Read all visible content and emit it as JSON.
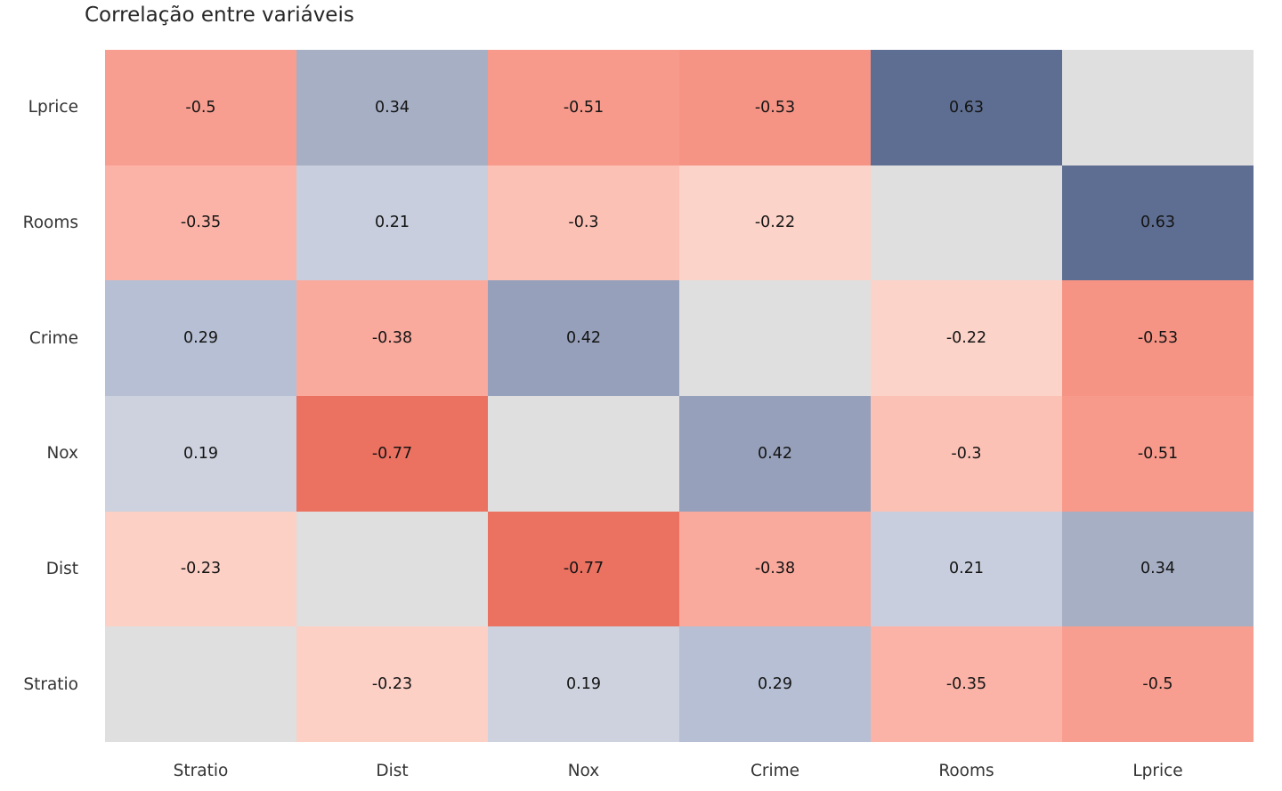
{
  "chart_data": {
    "type": "heatmap",
    "title": "Correlação entre variáveis",
    "rows": [
      "Lprice",
      "Rooms",
      "Crime",
      "Nox",
      "Dist",
      "Stratio"
    ],
    "cols": [
      "Stratio",
      "Dist",
      "Nox",
      "Crime",
      "Rooms",
      "Lprice"
    ],
    "values": [
      [
        -0.5,
        0.34,
        -0.51,
        -0.53,
        0.63,
        null
      ],
      [
        -0.35,
        0.21,
        -0.3,
        -0.22,
        null,
        0.63
      ],
      [
        0.29,
        -0.38,
        0.42,
        null,
        -0.22,
        -0.53
      ],
      [
        0.19,
        -0.77,
        null,
        0.42,
        -0.3,
        -0.51
      ],
      [
        -0.23,
        null,
        -0.77,
        -0.38,
        0.21,
        0.34
      ],
      [
        null,
        -0.23,
        0.19,
        0.29,
        -0.35,
        -0.5
      ]
    ],
    "value_colors": {
      "-0.77": "#eb7161",
      "-0.53": "#f59485",
      "-0.51": "#f79a8b",
      "-0.5": "#f89e90",
      "-0.38": "#f9aa9d",
      "-0.35": "#fbb3a7",
      "-0.3": "#fcc1b5",
      "-0.23": "#fcd0c5",
      "-0.22": "#fcd3c8",
      "0.19": "#cdd2de",
      "0.21": "#c8cedd",
      "0.29": "#b6bfd3",
      "0.34": "#a6afc4",
      "0.42": "#96a0ba",
      "0.63": "#5e6e92"
    },
    "nan_color": "#dfdfdf",
    "colormap_hint": "diverging red-gray-blue, centered at 0, range -1 to 1",
    "diagonal": "masked (no text, gray fill)",
    "grid_lines": false,
    "background": "#ffffff"
  }
}
